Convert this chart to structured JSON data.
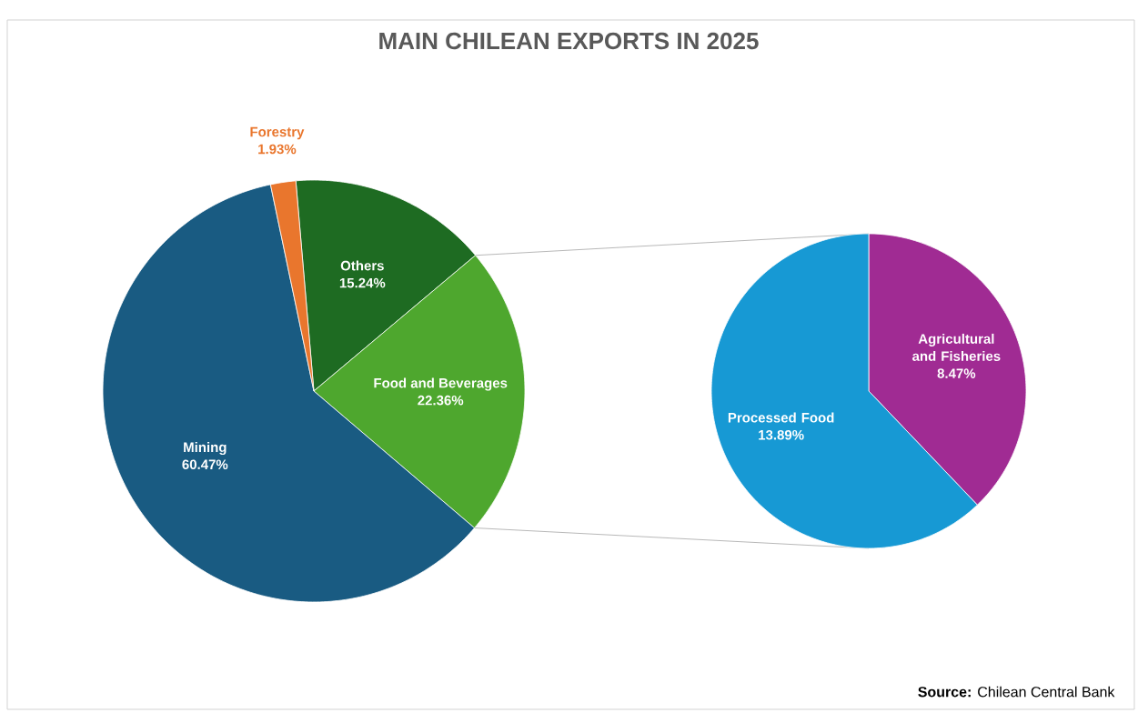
{
  "chart_data": [
    {
      "type": "pie",
      "title": "MAIN CHILEAN EXPORTS IN 2025",
      "categories": [
        "Others",
        "Food and Beverages",
        "Mining",
        "Forestry"
      ],
      "values": [
        15.24,
        22.36,
        60.47,
        1.93
      ],
      "colors": [
        "#1e6b22",
        "#4ea72e",
        "#195b82",
        "#e9762d"
      ],
      "value_labels": [
        "15.24%",
        "22.36%",
        "60.47%",
        "1.93%"
      ]
    },
    {
      "type": "pie",
      "categories": [
        "Agricultural and Fisheries",
        "Processed Food"
      ],
      "values": [
        8.47,
        13.89
      ],
      "colors": [
        "#a02b93",
        "#1799d4"
      ],
      "value_labels": [
        "8.47%",
        "13.89%"
      ],
      "annotations": [
        "**Source:** Chilean Central Bank"
      ]
    }
  ]
}
